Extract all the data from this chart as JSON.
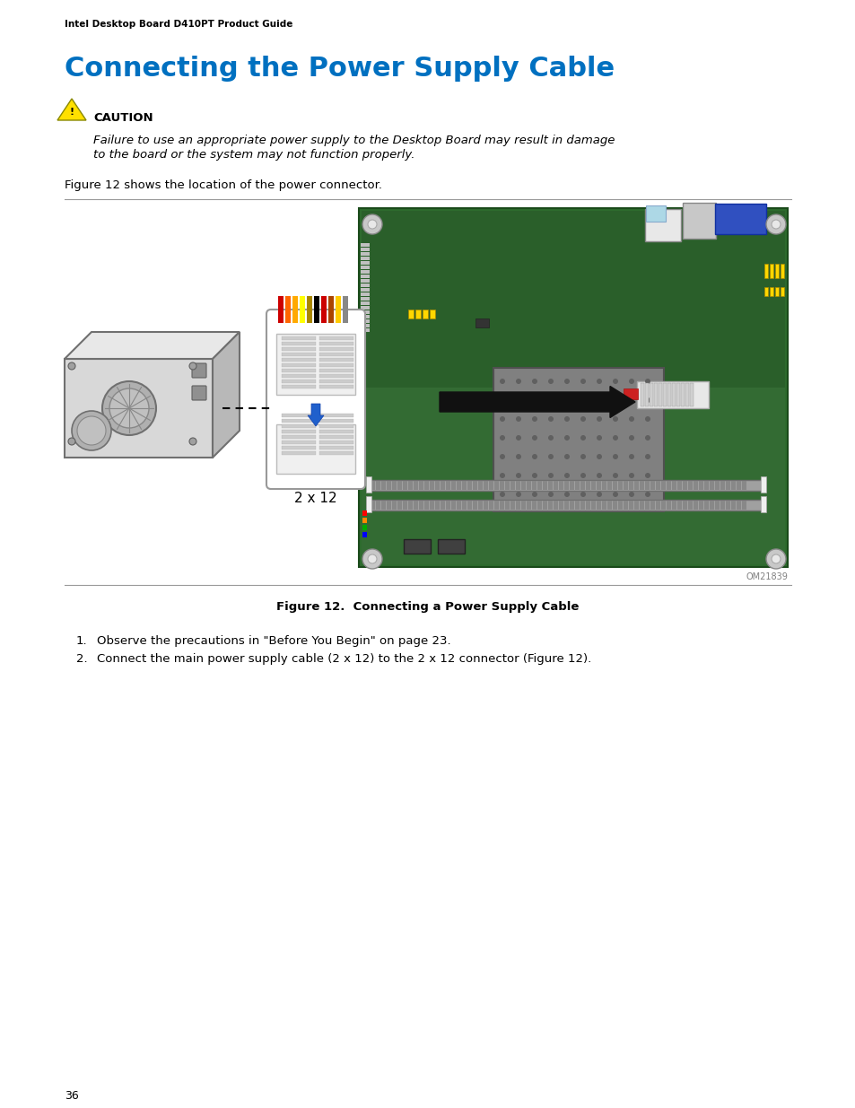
{
  "header_text": "Intel Desktop Board D410PT Product Guide",
  "title": "Connecting the Power Supply Cable",
  "title_color": "#0070C0",
  "caution_label": "CAUTION",
  "caution_text_line1": "Failure to use an appropriate power supply to the Desktop Board may result in damage",
  "caution_text_line2": "to the board or the system may not function properly.",
  "figure_intro": "Figure 12 shows the location of the power connector.",
  "figure_caption": "Figure 12.  Connecting a Power Supply Cable",
  "figure_label": "OM21839",
  "step1": "Observe the precautions in \"Before You Begin\" on page 23.",
  "step2": "Connect the main power supply cable (2 x 12) to the 2 x 12 connector (Figure 12).",
  "page_number": "36",
  "connector_label": "2 x 12",
  "background": "#ffffff",
  "header_font_size": 7.5,
  "title_font_size": 22,
  "body_font_size": 9.5
}
